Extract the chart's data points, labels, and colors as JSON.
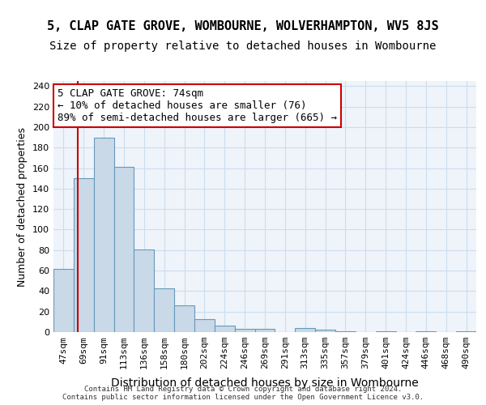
{
  "title1": "5, CLAP GATE GROVE, WOMBOURNE, WOLVERHAMPTON, WV5 8JS",
  "title2": "Size of property relative to detached houses in Wombourne",
  "xlabel": "Distribution of detached houses by size in Wombourne",
  "ylabel": "Number of detached properties",
  "footer1": "Contains HM Land Registry data © Crown copyright and database right 2024.",
  "footer2": "Contains public sector information licensed under the Open Government Licence v3.0.",
  "categories": [
    "47sqm",
    "69sqm",
    "91sqm",
    "113sqm",
    "136sqm",
    "158sqm",
    "180sqm",
    "202sqm",
    "224sqm",
    "246sqm",
    "269sqm",
    "291sqm",
    "313sqm",
    "335sqm",
    "357sqm",
    "379sqm",
    "401sqm",
    "424sqm",
    "446sqm",
    "468sqm",
    "490sqm"
  ],
  "values": [
    62,
    150,
    190,
    161,
    81,
    43,
    26,
    13,
    6,
    3,
    3,
    0,
    4,
    2,
    1,
    0,
    1,
    0,
    1,
    0,
    1
  ],
  "bar_color": "#c9d9e8",
  "bar_edge_color": "#6699bb",
  "grid_color": "#ccddee",
  "background_color": "#eef4fa",
  "annotation_text": "5 CLAP GATE GROVE: 74sqm\n← 10% of detached houses are smaller (76)\n89% of semi-detached houses are larger (665) →",
  "annotation_box_color": "#ffffff",
  "annotation_border_color": "#cc0000",
  "red_line_x": 0.72,
  "red_line_color": "#cc0000",
  "ylim": [
    0,
    245
  ],
  "yticks": [
    0,
    20,
    40,
    60,
    80,
    100,
    120,
    140,
    160,
    180,
    200,
    220,
    240
  ],
  "title1_fontsize": 11,
  "title2_fontsize": 10,
  "xlabel_fontsize": 10,
  "ylabel_fontsize": 9,
  "tick_fontsize": 8,
  "annotation_fontsize": 9
}
